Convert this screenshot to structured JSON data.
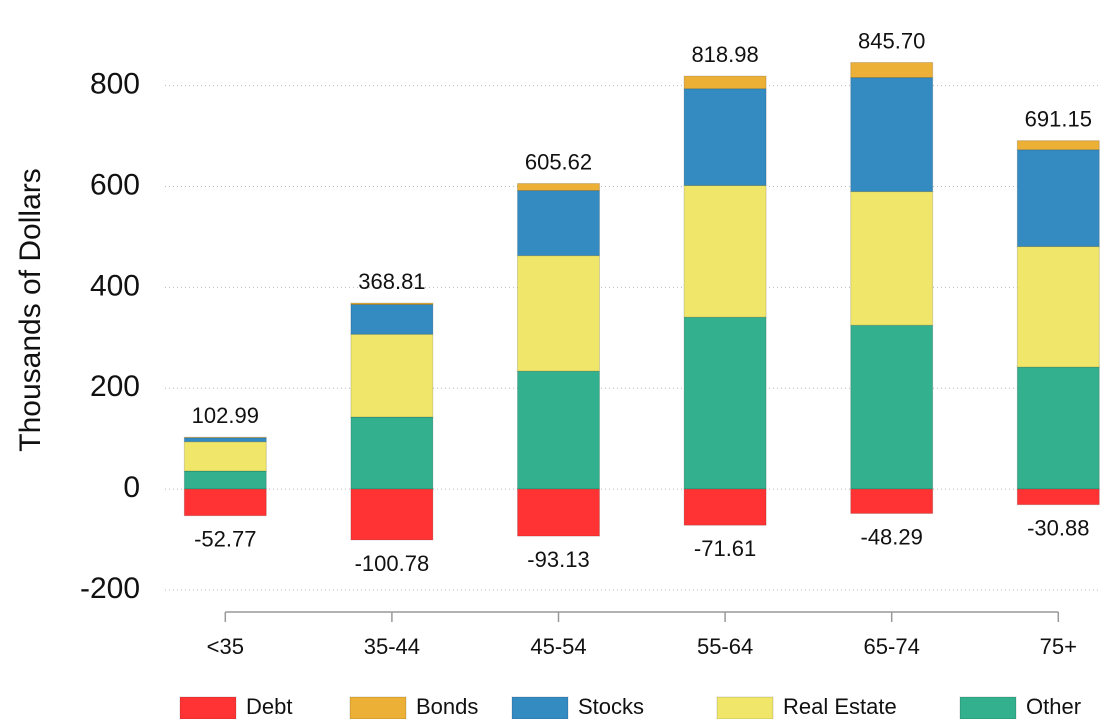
{
  "chart_data": {
    "type": "stacked-bar",
    "y_label": "Thousands of Dollars",
    "categories": [
      "<35",
      "35-44",
      "45-54",
      "55-64",
      "65-74",
      "75+"
    ],
    "series": [
      {
        "name": "Debt",
        "color": "#ff3333",
        "values": [
          -52.77,
          -100.78,
          -93.13,
          -71.61,
          -48.29,
          -30.88
        ]
      },
      {
        "name": "Bonds",
        "color": "#ebb035",
        "values": [
          1,
          3,
          14,
          25,
          30,
          18
        ]
      },
      {
        "name": "Stocks",
        "color": "#338bc2",
        "values": [
          8,
          59,
          129,
          192,
          226,
          192
        ]
      },
      {
        "name": "Real Estate",
        "color": "#f0e66a",
        "values": [
          58,
          164,
          229,
          261,
          265,
          239
        ]
      },
      {
        "name": "Other",
        "color": "#33b08d",
        "values": [
          36,
          143,
          234,
          341,
          325,
          242
        ]
      }
    ],
    "totals": [
      102.99,
      368.81,
      605.62,
      818.98,
      845.7,
      691.15
    ],
    "total_labels": [
      "102.99",
      "368.81",
      "605.62",
      "818.98",
      "845.70",
      "691.15"
    ],
    "ylim": [
      -200,
      950
    ],
    "yticks": [
      -200,
      0,
      200,
      400,
      600,
      800
    ],
    "grid": true,
    "legend": "bottom"
  }
}
